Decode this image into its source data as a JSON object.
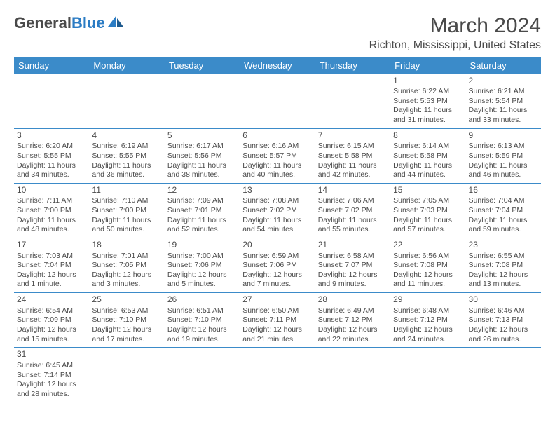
{
  "logo": {
    "text1": "General",
    "text2": "Blue"
  },
  "title": "March 2024",
  "location": "Richton, Mississippi, United States",
  "header_bg": "#3b8bc9",
  "border_color": "#3b8bc9",
  "weekdays": [
    "Sunday",
    "Monday",
    "Tuesday",
    "Wednesday",
    "Thursday",
    "Friday",
    "Saturday"
  ],
  "weeks": [
    [
      null,
      null,
      null,
      null,
      null,
      {
        "n": "1",
        "sr": "Sunrise: 6:22 AM",
        "ss": "Sunset: 5:53 PM",
        "d1": "Daylight: 11 hours",
        "d2": "and 31 minutes."
      },
      {
        "n": "2",
        "sr": "Sunrise: 6:21 AM",
        "ss": "Sunset: 5:54 PM",
        "d1": "Daylight: 11 hours",
        "d2": "and 33 minutes."
      }
    ],
    [
      {
        "n": "3",
        "sr": "Sunrise: 6:20 AM",
        "ss": "Sunset: 5:55 PM",
        "d1": "Daylight: 11 hours",
        "d2": "and 34 minutes."
      },
      {
        "n": "4",
        "sr": "Sunrise: 6:19 AM",
        "ss": "Sunset: 5:55 PM",
        "d1": "Daylight: 11 hours",
        "d2": "and 36 minutes."
      },
      {
        "n": "5",
        "sr": "Sunrise: 6:17 AM",
        "ss": "Sunset: 5:56 PM",
        "d1": "Daylight: 11 hours",
        "d2": "and 38 minutes."
      },
      {
        "n": "6",
        "sr": "Sunrise: 6:16 AM",
        "ss": "Sunset: 5:57 PM",
        "d1": "Daylight: 11 hours",
        "d2": "and 40 minutes."
      },
      {
        "n": "7",
        "sr": "Sunrise: 6:15 AM",
        "ss": "Sunset: 5:58 PM",
        "d1": "Daylight: 11 hours",
        "d2": "and 42 minutes."
      },
      {
        "n": "8",
        "sr": "Sunrise: 6:14 AM",
        "ss": "Sunset: 5:58 PM",
        "d1": "Daylight: 11 hours",
        "d2": "and 44 minutes."
      },
      {
        "n": "9",
        "sr": "Sunrise: 6:13 AM",
        "ss": "Sunset: 5:59 PM",
        "d1": "Daylight: 11 hours",
        "d2": "and 46 minutes."
      }
    ],
    [
      {
        "n": "10",
        "sr": "Sunrise: 7:11 AM",
        "ss": "Sunset: 7:00 PM",
        "d1": "Daylight: 11 hours",
        "d2": "and 48 minutes."
      },
      {
        "n": "11",
        "sr": "Sunrise: 7:10 AM",
        "ss": "Sunset: 7:00 PM",
        "d1": "Daylight: 11 hours",
        "d2": "and 50 minutes."
      },
      {
        "n": "12",
        "sr": "Sunrise: 7:09 AM",
        "ss": "Sunset: 7:01 PM",
        "d1": "Daylight: 11 hours",
        "d2": "and 52 minutes."
      },
      {
        "n": "13",
        "sr": "Sunrise: 7:08 AM",
        "ss": "Sunset: 7:02 PM",
        "d1": "Daylight: 11 hours",
        "d2": "and 54 minutes."
      },
      {
        "n": "14",
        "sr": "Sunrise: 7:06 AM",
        "ss": "Sunset: 7:02 PM",
        "d1": "Daylight: 11 hours",
        "d2": "and 55 minutes."
      },
      {
        "n": "15",
        "sr": "Sunrise: 7:05 AM",
        "ss": "Sunset: 7:03 PM",
        "d1": "Daylight: 11 hours",
        "d2": "and 57 minutes."
      },
      {
        "n": "16",
        "sr": "Sunrise: 7:04 AM",
        "ss": "Sunset: 7:04 PM",
        "d1": "Daylight: 11 hours",
        "d2": "and 59 minutes."
      }
    ],
    [
      {
        "n": "17",
        "sr": "Sunrise: 7:03 AM",
        "ss": "Sunset: 7:04 PM",
        "d1": "Daylight: 12 hours",
        "d2": "and 1 minute."
      },
      {
        "n": "18",
        "sr": "Sunrise: 7:01 AM",
        "ss": "Sunset: 7:05 PM",
        "d1": "Daylight: 12 hours",
        "d2": "and 3 minutes."
      },
      {
        "n": "19",
        "sr": "Sunrise: 7:00 AM",
        "ss": "Sunset: 7:06 PM",
        "d1": "Daylight: 12 hours",
        "d2": "and 5 minutes."
      },
      {
        "n": "20",
        "sr": "Sunrise: 6:59 AM",
        "ss": "Sunset: 7:06 PM",
        "d1": "Daylight: 12 hours",
        "d2": "and 7 minutes."
      },
      {
        "n": "21",
        "sr": "Sunrise: 6:58 AM",
        "ss": "Sunset: 7:07 PM",
        "d1": "Daylight: 12 hours",
        "d2": "and 9 minutes."
      },
      {
        "n": "22",
        "sr": "Sunrise: 6:56 AM",
        "ss": "Sunset: 7:08 PM",
        "d1": "Daylight: 12 hours",
        "d2": "and 11 minutes."
      },
      {
        "n": "23",
        "sr": "Sunrise: 6:55 AM",
        "ss": "Sunset: 7:08 PM",
        "d1": "Daylight: 12 hours",
        "d2": "and 13 minutes."
      }
    ],
    [
      {
        "n": "24",
        "sr": "Sunrise: 6:54 AM",
        "ss": "Sunset: 7:09 PM",
        "d1": "Daylight: 12 hours",
        "d2": "and 15 minutes."
      },
      {
        "n": "25",
        "sr": "Sunrise: 6:53 AM",
        "ss": "Sunset: 7:10 PM",
        "d1": "Daylight: 12 hours",
        "d2": "and 17 minutes."
      },
      {
        "n": "26",
        "sr": "Sunrise: 6:51 AM",
        "ss": "Sunset: 7:10 PM",
        "d1": "Daylight: 12 hours",
        "d2": "and 19 minutes."
      },
      {
        "n": "27",
        "sr": "Sunrise: 6:50 AM",
        "ss": "Sunset: 7:11 PM",
        "d1": "Daylight: 12 hours",
        "d2": "and 21 minutes."
      },
      {
        "n": "28",
        "sr": "Sunrise: 6:49 AM",
        "ss": "Sunset: 7:12 PM",
        "d1": "Daylight: 12 hours",
        "d2": "and 22 minutes."
      },
      {
        "n": "29",
        "sr": "Sunrise: 6:48 AM",
        "ss": "Sunset: 7:12 PM",
        "d1": "Daylight: 12 hours",
        "d2": "and 24 minutes."
      },
      {
        "n": "30",
        "sr": "Sunrise: 6:46 AM",
        "ss": "Sunset: 7:13 PM",
        "d1": "Daylight: 12 hours",
        "d2": "and 26 minutes."
      }
    ],
    [
      {
        "n": "31",
        "sr": "Sunrise: 6:45 AM",
        "ss": "Sunset: 7:14 PM",
        "d1": "Daylight: 12 hours",
        "d2": "and 28 minutes."
      },
      null,
      null,
      null,
      null,
      null,
      null
    ]
  ]
}
